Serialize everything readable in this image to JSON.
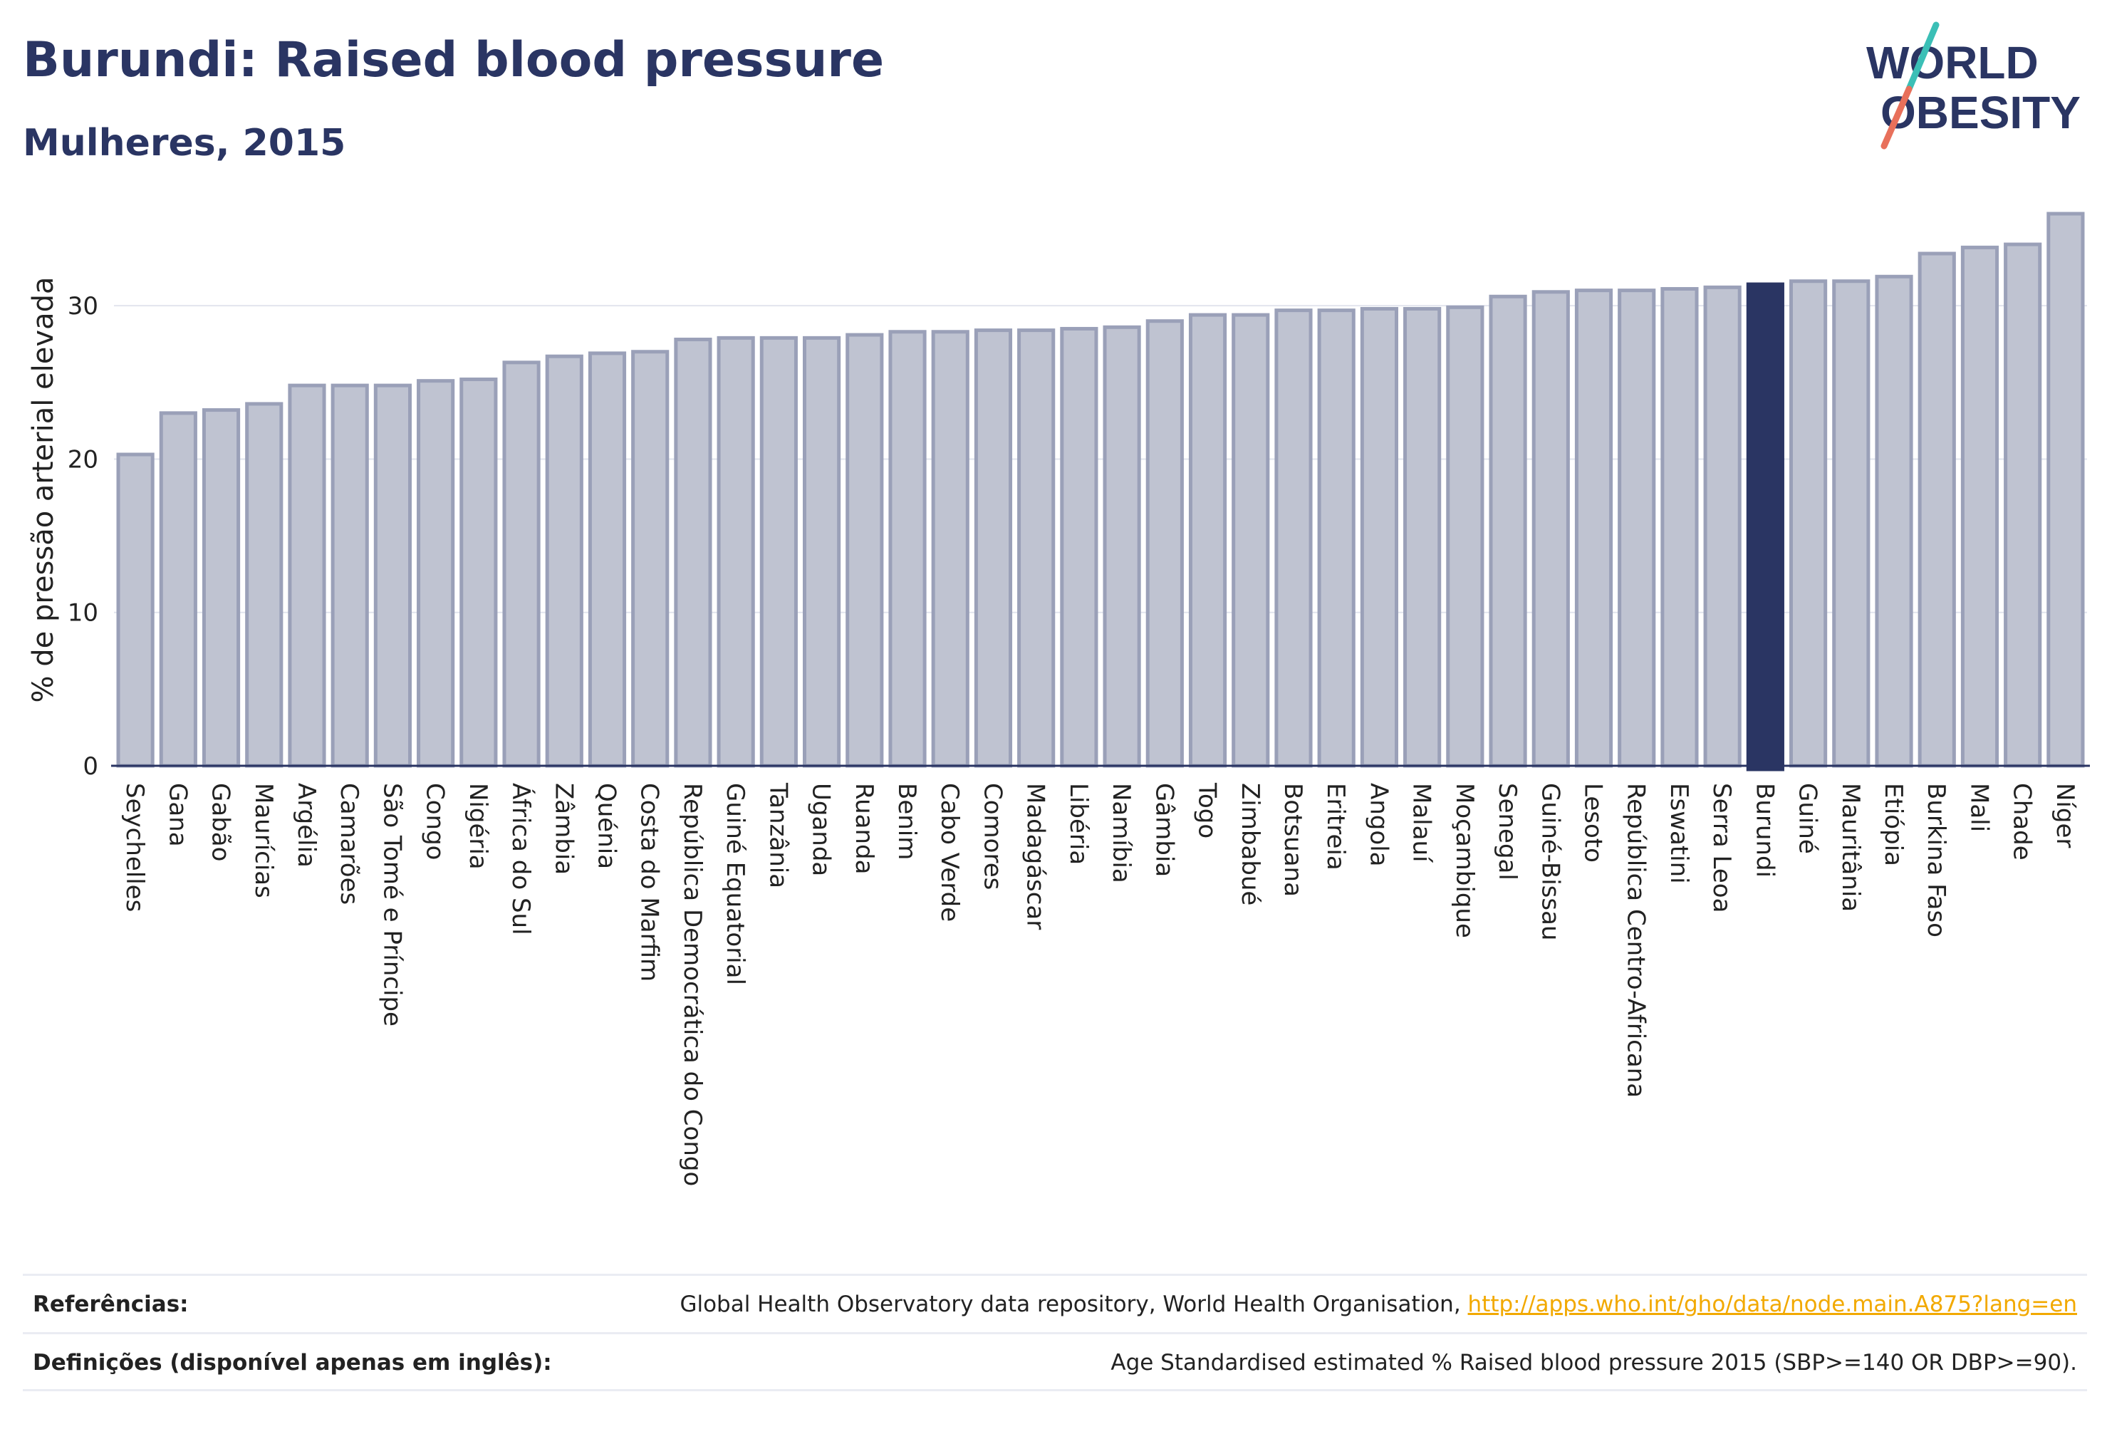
{
  "header": {
    "title": "Burundi: Raised blood pressure",
    "subtitle": "Mulheres, 2015"
  },
  "logo": {
    "line1": "WORLD",
    "line2": "OBESITY",
    "colors": {
      "text": "#2a3563",
      "slash_teal": "#3bbfb6",
      "slash_coral": "#e8705b"
    }
  },
  "chart_data": {
    "type": "bar",
    "title": "",
    "xlabel": "",
    "ylabel": "% de pressão arterial elevada",
    "ylim": [
      0,
      36
    ],
    "yticks": [
      0,
      10,
      20,
      30
    ],
    "grid": true,
    "highlight": "Burundi",
    "colors": {
      "bar": "#bfc3d1",
      "bar_border": "#9aa0b8",
      "highlight": "#2a3563",
      "axis": "#2a3563",
      "grid": "#e2e5ee"
    },
    "categories": [
      "Seychelles",
      "Gana",
      "Gabão",
      "Maurícias",
      "Argélia",
      "Camarões",
      "São Tomé e Príncipe",
      "Congo",
      "Nigéria",
      "África do Sul",
      "Zâmbia",
      "Quénia",
      "Costa do Marfim",
      "República Democrática do Congo",
      "Guiné Equatorial",
      "Tanzânia",
      "Uganda",
      "Ruanda",
      "Benim",
      "Cabo Verde",
      "Comores",
      "Madagáscar",
      "Libéria",
      "Namíbia",
      "Gâmbia",
      "Togo",
      "Zimbabué",
      "Botsuana",
      "Eritreia",
      "Angola",
      "Malauí",
      "Moçambique",
      "Senegal",
      "Guiné-Bissau",
      "Lesoto",
      "República Centro-Africana",
      "Eswatini",
      "Serra Leoa",
      "Burundi",
      "Guiné",
      "Mauritânia",
      "Etiópia",
      "Burkina Faso",
      "Mali",
      "Chade",
      "Níger"
    ],
    "values": [
      20.3,
      23.0,
      23.2,
      23.6,
      24.8,
      24.8,
      24.8,
      25.1,
      25.2,
      26.3,
      26.7,
      26.9,
      27.0,
      27.8,
      27.9,
      27.9,
      27.9,
      28.1,
      28.3,
      28.3,
      28.4,
      28.4,
      28.5,
      28.6,
      29.0,
      29.4,
      29.4,
      29.7,
      29.7,
      29.8,
      29.8,
      29.9,
      30.6,
      30.9,
      31.0,
      31.0,
      31.1,
      31.2,
      31.4,
      31.6,
      31.6,
      31.9,
      33.4,
      33.8,
      34.0,
      36.0
    ]
  },
  "footer": {
    "references_label": "Referências:",
    "references_text": "Global Health Observatory data repository, World Health Organisation,",
    "references_link": "http://apps.who.int/gho/data/node.main.A875?lang=en",
    "definitions_label": "Definições (disponível apenas em inglês):",
    "definitions_text": "Age Standardised estimated % Raised blood pressure 2015 (SBP>=140 OR DBP>=90)."
  }
}
